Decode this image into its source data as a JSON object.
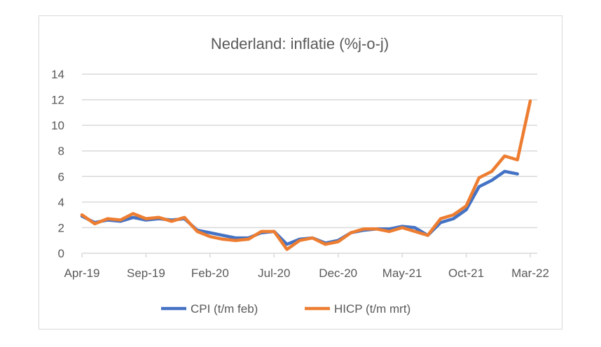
{
  "chart_data": {
    "type": "line",
    "title": "Nederland: inflatie (%j-o-j)",
    "xlabel": "",
    "ylabel": "",
    "ylim": [
      0,
      14
    ],
    "yticks": [
      "0",
      "2",
      "4",
      "6",
      "8",
      "10",
      "12",
      "14"
    ],
    "xticks": [
      "Apr-19",
      "Sep-19",
      "Feb-20",
      "Jul-20",
      "Dec-20",
      "May-21",
      "Oct-21",
      "Mar-22"
    ],
    "grid": true,
    "legend": "bottom",
    "x": [
      "Apr-19",
      "May-19",
      "Jun-19",
      "Jul-19",
      "Aug-19",
      "Sep-19",
      "Oct-19",
      "Nov-19",
      "Dec-19",
      "Jan-20",
      "Feb-20",
      "Mar-20",
      "Apr-20",
      "May-20",
      "Jun-20",
      "Jul-20",
      "Aug-20",
      "Sep-20",
      "Oct-20",
      "Nov-20",
      "Dec-20",
      "Jan-21",
      "Feb-21",
      "Mar-21",
      "Apr-21",
      "May-21",
      "Jun-21",
      "Jul-21",
      "Aug-21",
      "Sep-21",
      "Oct-21",
      "Nov-21",
      "Dec-21",
      "Jan-22",
      "Feb-22",
      "Mar-22"
    ],
    "series": [
      {
        "name": "CPI (t/m feb)",
        "color": "#4472c4",
        "values": [
          2.9,
          2.4,
          2.6,
          2.5,
          2.8,
          2.6,
          2.7,
          2.6,
          2.7,
          1.8,
          1.6,
          1.4,
          1.2,
          1.2,
          1.6,
          1.7,
          0.7,
          1.1,
          1.2,
          0.8,
          1.0,
          1.6,
          1.8,
          1.9,
          1.9,
          2.1,
          2.0,
          1.4,
          2.4,
          2.7,
          3.4,
          5.2,
          5.7,
          6.4,
          6.2,
          null
        ]
      },
      {
        "name": "HICP (t/m mrt)",
        "color": "#ed7d31",
        "values": [
          3.0,
          2.3,
          2.7,
          2.6,
          3.1,
          2.7,
          2.8,
          2.5,
          2.8,
          1.7,
          1.3,
          1.1,
          1.0,
          1.1,
          1.7,
          1.7,
          0.3,
          1.0,
          1.2,
          0.7,
          0.9,
          1.6,
          1.9,
          1.9,
          1.7,
          2.0,
          1.7,
          1.4,
          2.7,
          3.0,
          3.7,
          5.9,
          6.4,
          7.6,
          7.3,
          11.9
        ]
      }
    ]
  }
}
